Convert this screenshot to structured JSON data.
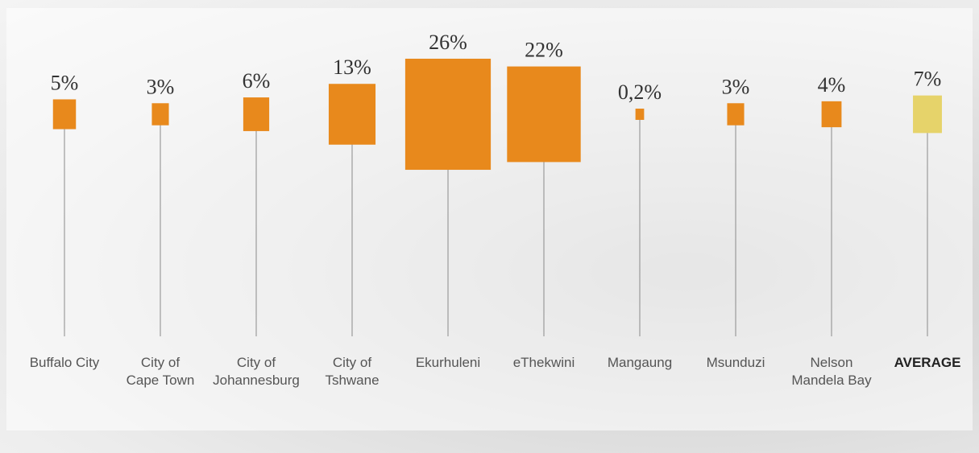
{
  "chart_data": {
    "type": "square",
    "categories": [
      "Buffalo City",
      "City of\nCape Town",
      "City of\nJohannesburg",
      "City  of\nTshwane",
      "Ekurhuleni",
      "eThekwini",
      "Mangaung",
      "Msunduzi",
      "Nelson\nMandela Bay",
      "AVERAGE"
    ],
    "values": [
      5,
      3,
      6,
      13,
      26,
      22,
      0.2,
      3,
      4,
      7
    ],
    "value_labels": [
      "5%",
      "3%",
      "6%",
      "13%",
      "26%",
      "22%",
      "0,2%",
      "3%",
      "4%",
      "7%"
    ],
    "color": "#e8891c",
    "colors": [
      "#e8891c",
      "#e8891c",
      "#e8891c",
      "#e8891c",
      "#e8891c",
      "#e8891c",
      "#e8891c",
      "#e8891c",
      "#e8891c",
      "#e6d36a"
    ]
  }
}
